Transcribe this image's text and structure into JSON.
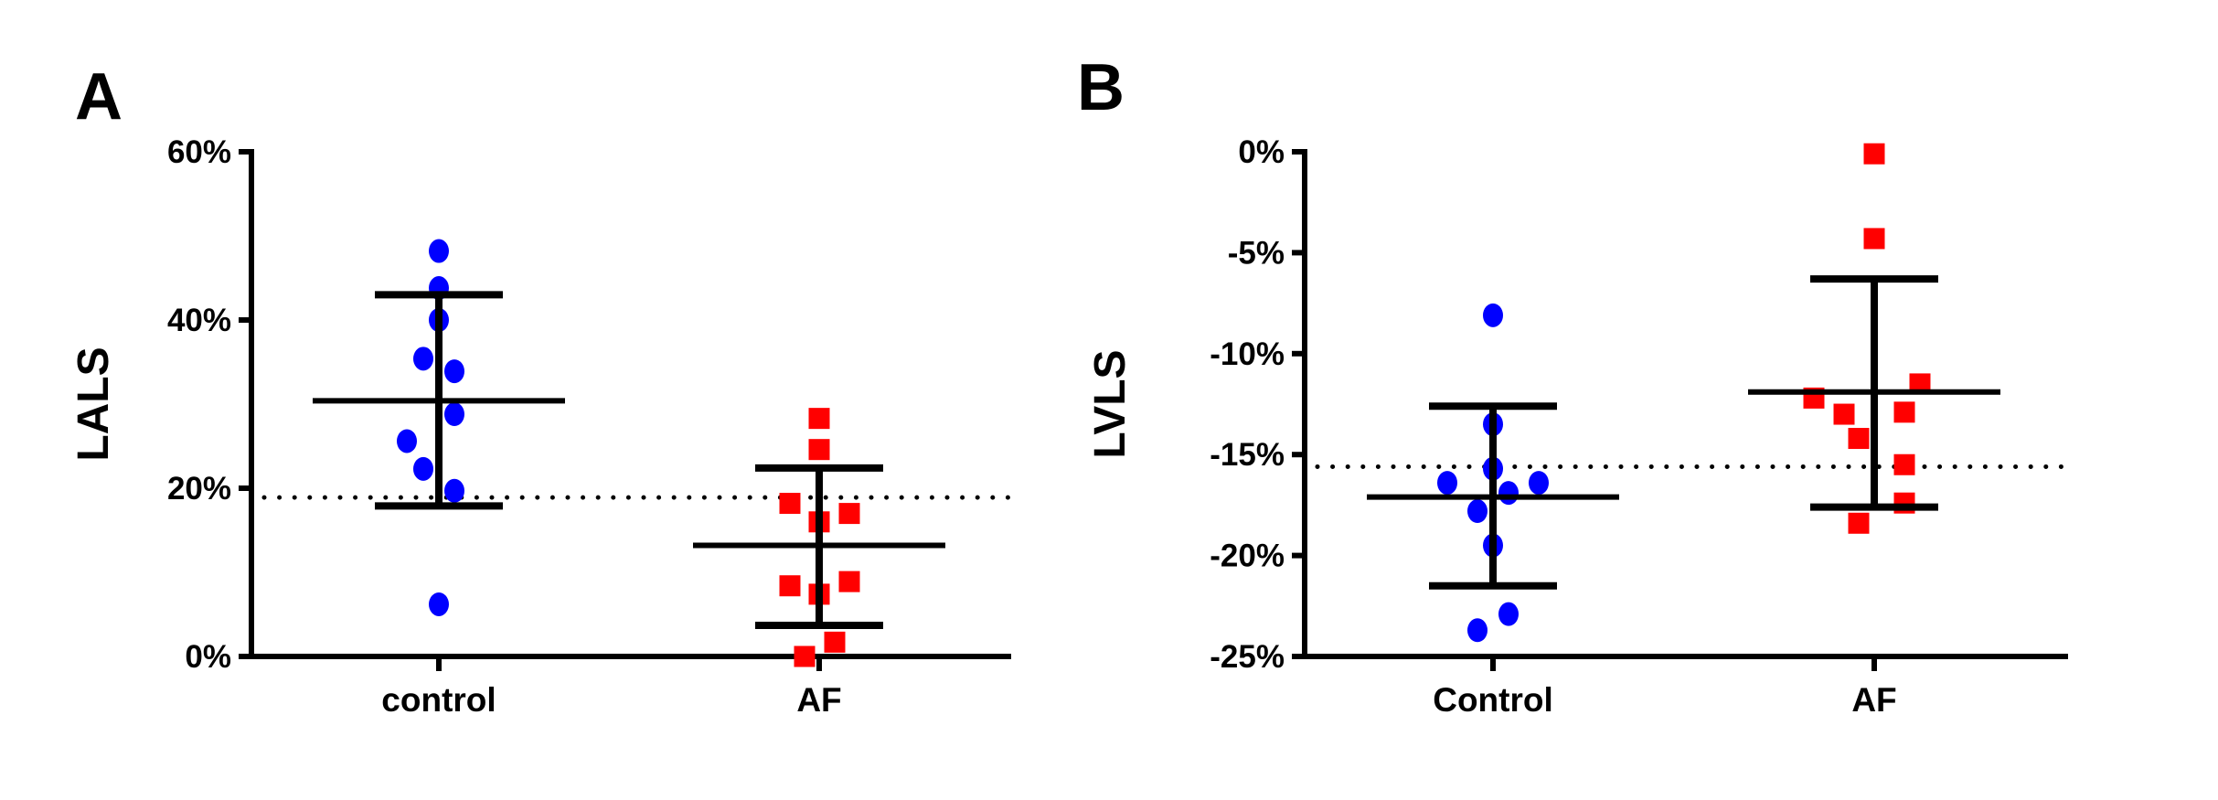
{
  "chart_data": [
    {
      "panel_label": "A",
      "type": "scatter",
      "ylabel": "LALS",
      "categories": [
        "control",
        "AF"
      ],
      "ylim": [
        0,
        60
      ],
      "yticks": [
        "0%",
        "20%",
        "40%",
        "60%"
      ],
      "ytick_values": [
        0,
        20,
        40,
        60
      ],
      "reference_line": 18.9,
      "colors": {
        "control": "#0000ff",
        "AF": "#ff0000"
      },
      "markers": {
        "control": "circle",
        "AF": "square"
      },
      "series": [
        {
          "category": "control",
          "values": [
            48.2,
            43.8,
            40.0,
            35.4,
            33.9,
            28.8,
            25.6,
            22.3,
            19.7,
            6.2
          ],
          "mean": 30.4,
          "sd_upper": 43.0,
          "sd_lower": 17.9
        },
        {
          "category": "AF",
          "values": [
            28.3,
            24.6,
            18.2,
            17.0,
            16.0,
            8.9,
            8.4,
            7.4,
            1.7,
            0.0
          ],
          "mean": 13.2,
          "sd_upper": 22.4,
          "sd_lower": 3.7
        }
      ]
    },
    {
      "panel_label": "B",
      "type": "scatter",
      "ylabel": "LVLS",
      "categories": [
        "Control",
        "AF"
      ],
      "ylim": [
        -25,
        0
      ],
      "yticks": [
        "-25%",
        "-20%",
        "-15%",
        "-10%",
        "-5%",
        "0%"
      ],
      "ytick_values": [
        -25,
        -20,
        -15,
        -10,
        -5,
        0
      ],
      "reference_line": -15.6,
      "colors": {
        "Control": "#0000ff",
        "AF": "#ff0000"
      },
      "markers": {
        "Control": "circle",
        "AF": "square"
      },
      "series": [
        {
          "category": "Control",
          "values": [
            -8.1,
            -13.5,
            -15.7,
            -16.4,
            -16.4,
            -16.9,
            -17.8,
            -19.5,
            -22.9,
            -23.7
          ],
          "mean": -17.1,
          "sd_upper": -12.6,
          "sd_lower": -21.5
        },
        {
          "category": "AF",
          "values": [
            -0.1,
            -4.3,
            -11.5,
            -12.2,
            -12.9,
            -13.0,
            -14.2,
            -15.5,
            -17.4,
            -18.4
          ],
          "mean": -11.9,
          "sd_upper": -6.3,
          "sd_lower": -17.6
        }
      ]
    }
  ]
}
